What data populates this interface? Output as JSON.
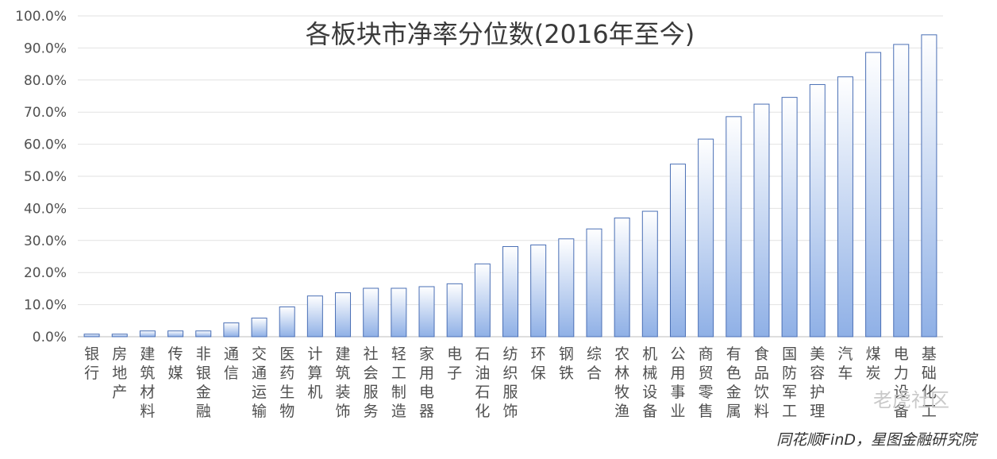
{
  "chart_data": {
    "type": "bar",
    "title": "各板块市净率分位数(2016年至今)",
    "categories": [
      "银行",
      "房地产",
      "建筑材料",
      "传媒",
      "非银金融",
      "通信",
      "交通运输",
      "医药生物",
      "计算机",
      "建筑装饰",
      "社会服务",
      "轻工制造",
      "家用电器",
      "电子",
      "石油石化",
      "纺织服饰",
      "环保",
      "钢铁",
      "综合",
      "农林牧渔",
      "机械设备",
      "公用事业",
      "商贸零售",
      "有色金属",
      "食品饮料",
      "国防军工",
      "美容护理",
      "汽车",
      "煤炭",
      "电力设备",
      "基础化工"
    ],
    "values": [
      0.8,
      0.8,
      1.8,
      1.8,
      1.8,
      4.3,
      5.8,
      9.3,
      12.7,
      13.7,
      15.1,
      15.1,
      15.6,
      16.5,
      22.7,
      28.1,
      28.6,
      30.5,
      33.6,
      37.0,
      39.1,
      53.8,
      61.6,
      68.6,
      72.5,
      74.6,
      78.6,
      81.0,
      88.6,
      91.1,
      94.1
    ],
    "yticks": [
      "0.0%",
      "10.0%",
      "20.0%",
      "30.0%",
      "40.0%",
      "50.0%",
      "60.0%",
      "70.0%",
      "80.0%",
      "90.0%",
      "100.0%"
    ],
    "ylim": [
      0,
      100
    ],
    "grid": true,
    "bar_color": "#8fb0e6"
  },
  "source_text": "同花顺FinD，星图金融研究院",
  "watermark_text": "老虎社区"
}
